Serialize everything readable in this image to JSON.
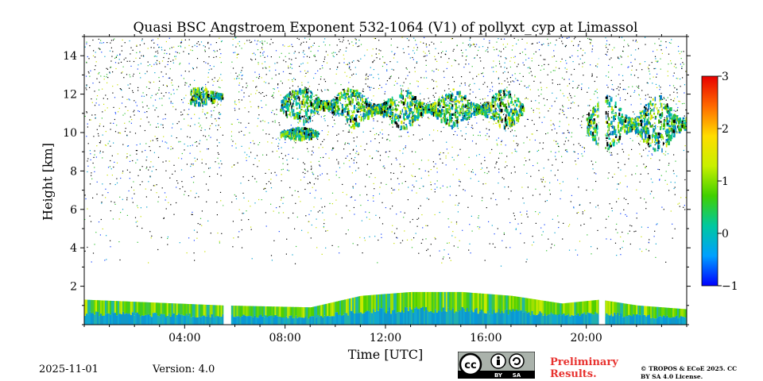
{
  "chart_data": {
    "type": "heatmap",
    "title": "Quasi BSC Angstroem Exponent 532-1064 (V1) of pollyxt_cyp at Limassol",
    "xlabel": "Time [UTC]",
    "ylabel": "Height [km]",
    "xlim": [
      0,
      24
    ],
    "ylim": [
      0,
      15
    ],
    "x_ticks": [
      {
        "value": 4,
        "label": "04:00"
      },
      {
        "value": 8,
        "label": "08:00"
      },
      {
        "value": 12,
        "label": "12:00"
      },
      {
        "value": 16,
        "label": "16:00"
      },
      {
        "value": 20,
        "label": "20:00"
      }
    ],
    "y_ticks": [
      {
        "value": 2,
        "label": "2"
      },
      {
        "value": 4,
        "label": "4"
      },
      {
        "value": 6,
        "label": "6"
      },
      {
        "value": 8,
        "label": "8"
      },
      {
        "value": 10,
        "label": "10"
      },
      {
        "value": 12,
        "label": "12"
      },
      {
        "value": 14,
        "label": "14"
      }
    ],
    "colorbar": {
      "range": [
        -1,
        3
      ],
      "ticks": [
        {
          "value": 3,
          "label": "3"
        },
        {
          "value": 2,
          "label": "2"
        },
        {
          "value": 1,
          "label": "1"
        },
        {
          "value": 0,
          "label": "0"
        },
        {
          "value": -1,
          "label": "−1"
        }
      ],
      "colormap": [
        "#0000ff",
        "#00a0ff",
        "#00c8a0",
        "#40d000",
        "#c8f000",
        "#ffdd00",
        "#ff6a00",
        "#e80000"
      ]
    },
    "data_gaps_hours": [
      [
        5.55,
        5.85
      ],
      [
        20.5,
        20.75
      ]
    ],
    "layers": [
      {
        "name": "boundary-layer",
        "bottom_km": 0.0,
        "top_profile": [
          [
            0,
            1.3
          ],
          [
            5.5,
            1.0
          ],
          [
            9,
            0.9
          ],
          [
            11,
            1.5
          ],
          [
            13,
            1.7
          ],
          [
            15,
            1.7
          ],
          [
            17,
            1.5
          ],
          [
            19,
            1.1
          ],
          [
            20.5,
            1.3
          ],
          [
            22,
            1.0
          ],
          [
            24,
            0.8
          ]
        ]
      },
      {
        "name": "cirrus-1",
        "x": [
          4.2,
          5.5
        ],
        "y": [
          11.5,
          12.4
        ]
      },
      {
        "name": "cirrus-2",
        "x": [
          7.8,
          10.5
        ],
        "y": [
          10.5,
          12.5
        ]
      },
      {
        "name": "cirrus-3",
        "x": [
          7.8,
          9.3
        ],
        "y": [
          9.7,
          10.3
        ]
      },
      {
        "name": "cirrus-4",
        "x": [
          10.5,
          17.5
        ],
        "y": [
          10.3,
          12.3
        ]
      },
      {
        "name": "cirrus-5",
        "x": [
          20.0,
          24.0
        ],
        "y": [
          9.0,
          12.0
        ]
      }
    ]
  },
  "footer": {
    "date": "2025-11-01",
    "version": "Version: 4.0",
    "preliminary": "Preliminary Results.",
    "copyright": "© TROPOS & ECoE 2025. CC BY SA 4.0 License.",
    "badge": {
      "cc": "cc",
      "by": "BY",
      "sa": "SA"
    }
  }
}
